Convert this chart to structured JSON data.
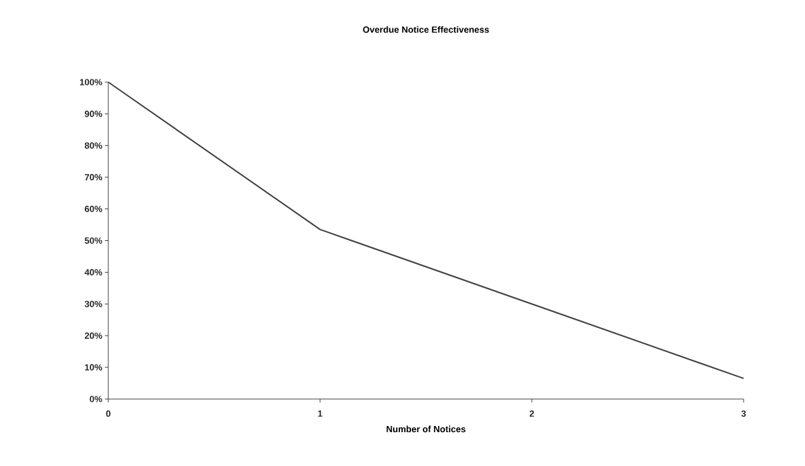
{
  "chart_data": {
    "type": "line",
    "title": "Overdue Notice Effectiveness",
    "xlabel": "Number of Notices",
    "x": [
      0,
      1,
      2,
      3
    ],
    "values": [
      100,
      53.5,
      30,
      6.5
    ],
    "color": "#404040",
    "xlim": [
      0,
      3
    ],
    "xticks": [
      0,
      1,
      2,
      3
    ],
    "ylim": [
      0,
      100
    ],
    "yticks": [
      {
        "value": 0,
        "label": "0%"
      },
      {
        "value": 10,
        "label": "10%"
      },
      {
        "value": 20,
        "label": "20%"
      },
      {
        "value": 30,
        "label": "30%"
      },
      {
        "value": 40,
        "label": "40%"
      },
      {
        "value": 50,
        "label": "50%"
      },
      {
        "value": 60,
        "label": "60%"
      },
      {
        "value": 70,
        "label": "70%"
      },
      {
        "value": 80,
        "label": "80%"
      },
      {
        "value": 90,
        "label": "90%"
      },
      {
        "value": 100,
        "label": "100%"
      }
    ],
    "grid": false,
    "marker": "none",
    "line_style": "solid"
  }
}
